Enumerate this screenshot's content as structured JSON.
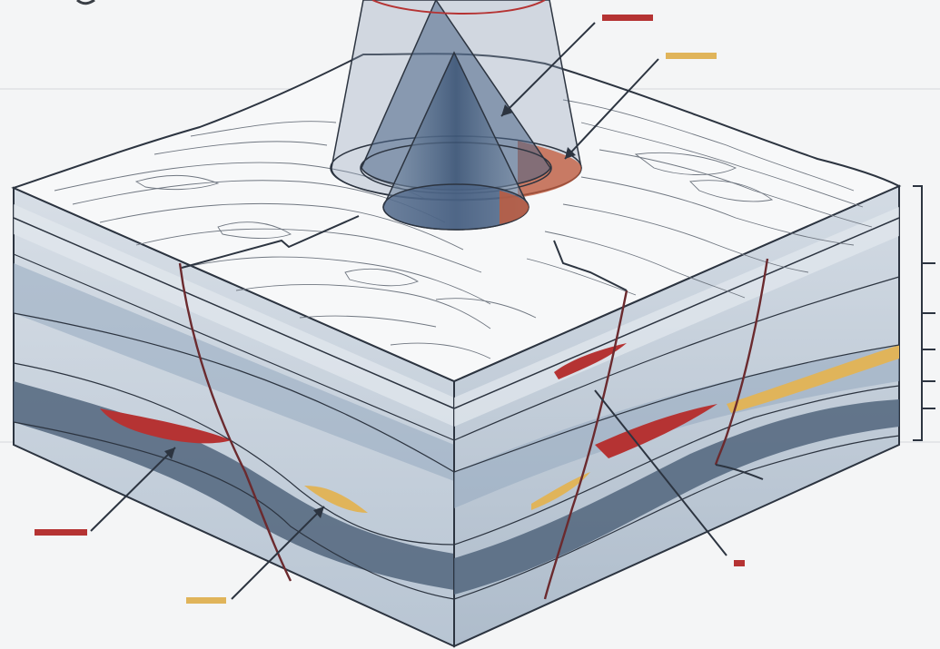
{
  "diagram": {
    "kind": "geologic-block-diagram",
    "colors": {
      "background": "#f4f5f6",
      "surface": "#f7f8f9",
      "contour": "#6f7680",
      "outline": "#2c3440",
      "layer_light": "#c9d3de",
      "layer_mid": "#8fa4ba",
      "layer_dark": "#51657c",
      "cone_fill": "#3f5877",
      "fault": "#6b2a2e",
      "red_lens": "#b53333",
      "yellow_lens": "#e0b45a"
    },
    "callout_markers": [
      {
        "name": "red-marker-top",
        "color": "#b53333"
      },
      {
        "name": "yellow-marker-top",
        "color": "#e0b45a"
      },
      {
        "name": "red-marker-left",
        "color": "#b53333"
      },
      {
        "name": "yellow-marker-bottom",
        "color": "#e0b45a"
      },
      {
        "name": "red-marker-right",
        "color": "#b53333"
      }
    ],
    "scale_bar_ticks": 5
  }
}
